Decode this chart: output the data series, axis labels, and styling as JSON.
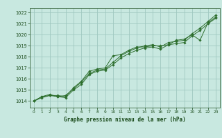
{
  "title": "Graphe pression niveau de la mer (hPa)",
  "bg_color": "#c8e8e0",
  "grid_color": "#a0c8c0",
  "line_color": "#2d6e2d",
  "marker_color": "#2d6e2d",
  "text_color": "#1a4a1a",
  "xlim": [
    -0.5,
    23.5
  ],
  "ylim": [
    1013.4,
    1022.4
  ],
  "yticks": [
    1014,
    1015,
    1016,
    1017,
    1018,
    1019,
    1020,
    1021,
    1022
  ],
  "xticks": [
    0,
    1,
    2,
    3,
    4,
    5,
    6,
    7,
    8,
    9,
    10,
    11,
    12,
    13,
    14,
    15,
    16,
    17,
    18,
    19,
    20,
    21,
    22,
    23
  ],
  "series": [
    [
      1014.0,
      1014.4,
      1014.5,
      1014.5,
      1014.4,
      1015.2,
      1015.8,
      1016.7,
      1016.9,
      1017.0,
      1018.1,
      1018.2,
      1018.6,
      1018.9,
      1018.9,
      1019.0,
      1019.0,
      1019.1,
      1019.5,
      1019.6,
      1020.0,
      1019.5,
      1021.1,
      1021.6
    ],
    [
      1014.0,
      1014.4,
      1014.6,
      1014.4,
      1014.5,
      1015.1,
      1015.7,
      1016.5,
      1016.8,
      1016.9,
      1017.5,
      1018.1,
      1018.5,
      1018.8,
      1019.0,
      1019.1,
      1018.9,
      1019.3,
      1019.4,
      1019.5,
      1020.1,
      1020.6,
      1021.2,
      1021.8
    ],
    [
      1014.0,
      1014.3,
      1014.5,
      1014.4,
      1014.3,
      1015.0,
      1015.5,
      1016.4,
      1016.7,
      1016.8,
      1017.3,
      1017.9,
      1018.3,
      1018.6,
      1018.8,
      1018.9,
      1018.7,
      1019.1,
      1019.2,
      1019.3,
      1019.9,
      1020.4,
      1021.0,
      1021.5
    ]
  ]
}
